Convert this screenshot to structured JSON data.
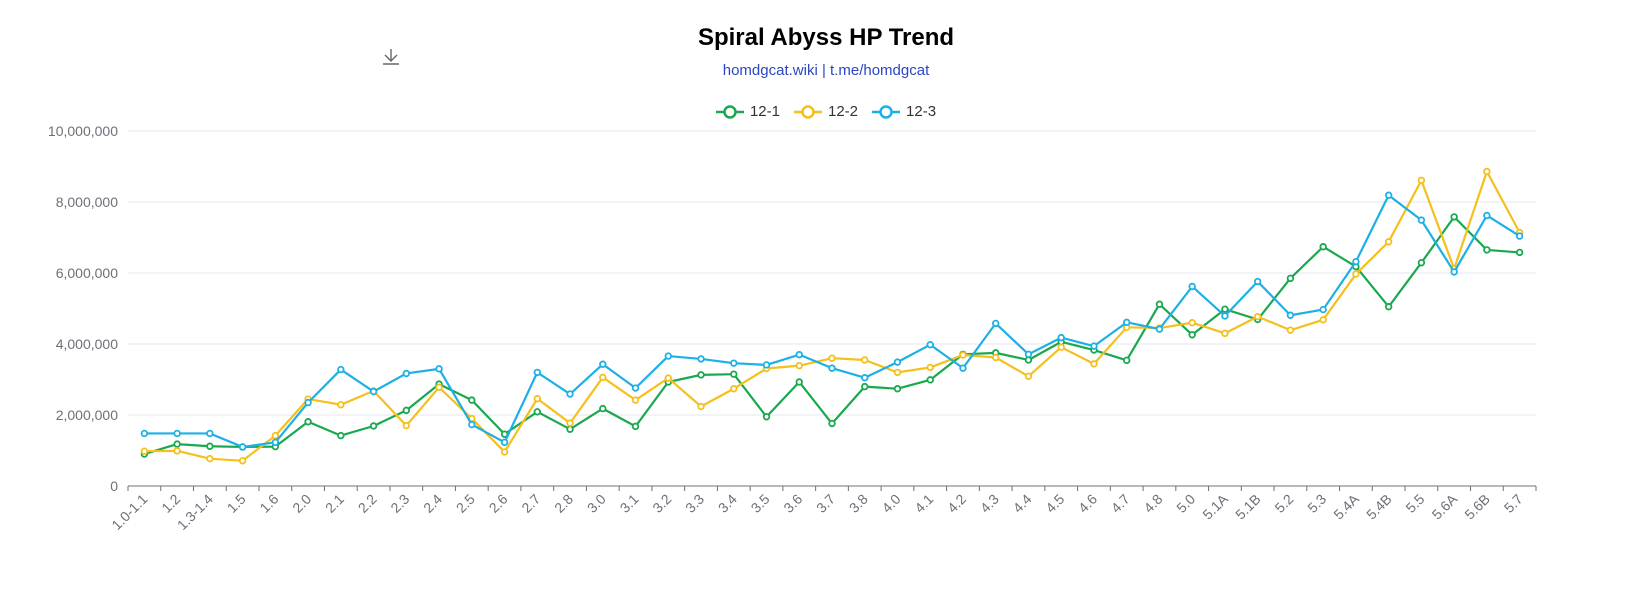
{
  "header": {
    "title": "Spiral Abyss HP Trend",
    "subtitle": "homdgcat.wiki | t.me/homdgcat"
  },
  "toolbar": {
    "download_icon": "download-icon"
  },
  "colors": {
    "12-1": "#1aa84f",
    "12-2": "#f5bf1c",
    "12-3": "#1cb0e6",
    "grid": "#e3e7f1",
    "axis": "#6e7079"
  },
  "chart_data": {
    "type": "line",
    "title": "Spiral Abyss HP Trend",
    "subtitle": "homdgcat.wiki | t.me/homdgcat",
    "legend_position": "top-center",
    "grid": true,
    "ylim": [
      0,
      10000000
    ],
    "yticks": [
      0,
      2000000,
      4000000,
      6000000,
      8000000,
      10000000
    ],
    "ytick_labels": [
      "0",
      "2,000,000",
      "4,000,000",
      "6,000,000",
      "8,000,000",
      "10,000,000"
    ],
    "categories": [
      "1.0-1.1",
      "1.2",
      "1.3-1.4",
      "1.5",
      "1.6",
      "2.0",
      "2.1",
      "2.2",
      "2.3",
      "2.4",
      "2.5",
      "2.6",
      "2.7",
      "2.8",
      "3.0",
      "3.1",
      "3.2",
      "3.3",
      "3.4",
      "3.5",
      "3.6",
      "3.7",
      "3.8",
      "4.0",
      "4.1",
      "4.2",
      "4.3",
      "4.4",
      "4.5",
      "4.6",
      "4.7",
      "4.8",
      "5.0",
      "5.1A",
      "5.1B",
      "5.2",
      "5.3",
      "5.4A",
      "5.4B",
      "5.5",
      "5.6A",
      "5.6B",
      "5.7"
    ],
    "series": [
      {
        "name": "12-1",
        "color": "#1aa84f",
        "values": [
          900000,
          1180000,
          1120000,
          1100000,
          1110000,
          1810000,
          1420000,
          1690000,
          2130000,
          2870000,
          2420000,
          1460000,
          2090000,
          1600000,
          2180000,
          1680000,
          2930000,
          3130000,
          3150000,
          1950000,
          2930000,
          1760000,
          2800000,
          2740000,
          2990000,
          3710000,
          3750000,
          3550000,
          4060000,
          3830000,
          3540000,
          5120000,
          4260000,
          4980000,
          4690000,
          5850000,
          6740000,
          6180000,
          5050000,
          6290000,
          7580000,
          6650000,
          6580000
        ]
      },
      {
        "name": "12-2",
        "color": "#f5bf1c",
        "values": [
          980000,
          990000,
          770000,
          710000,
          1420000,
          2450000,
          2290000,
          2680000,
          1700000,
          2780000,
          1900000,
          960000,
          2460000,
          1770000,
          3060000,
          2420000,
          3040000,
          2240000,
          2740000,
          3310000,
          3390000,
          3600000,
          3550000,
          3200000,
          3340000,
          3690000,
          3620000,
          3090000,
          3910000,
          3440000,
          4470000,
          4450000,
          4600000,
          4300000,
          4770000,
          4390000,
          4680000,
          5970000,
          6880000,
          8610000,
          6120000,
          8860000,
          7140000
        ]
      },
      {
        "name": "12-3",
        "color": "#1cb0e6",
        "values": [
          1480000,
          1480000,
          1480000,
          1100000,
          1230000,
          2350000,
          3280000,
          2660000,
          3170000,
          3300000,
          1730000,
          1230000,
          3200000,
          2590000,
          3430000,
          2760000,
          3660000,
          3580000,
          3460000,
          3410000,
          3700000,
          3320000,
          3050000,
          3490000,
          3980000,
          3320000,
          4580000,
          3710000,
          4180000,
          3940000,
          4610000,
          4420000,
          5620000,
          4790000,
          5760000,
          4810000,
          4970000,
          6320000,
          8190000,
          7490000,
          6030000,
          7620000,
          7040000
        ]
      }
    ]
  }
}
